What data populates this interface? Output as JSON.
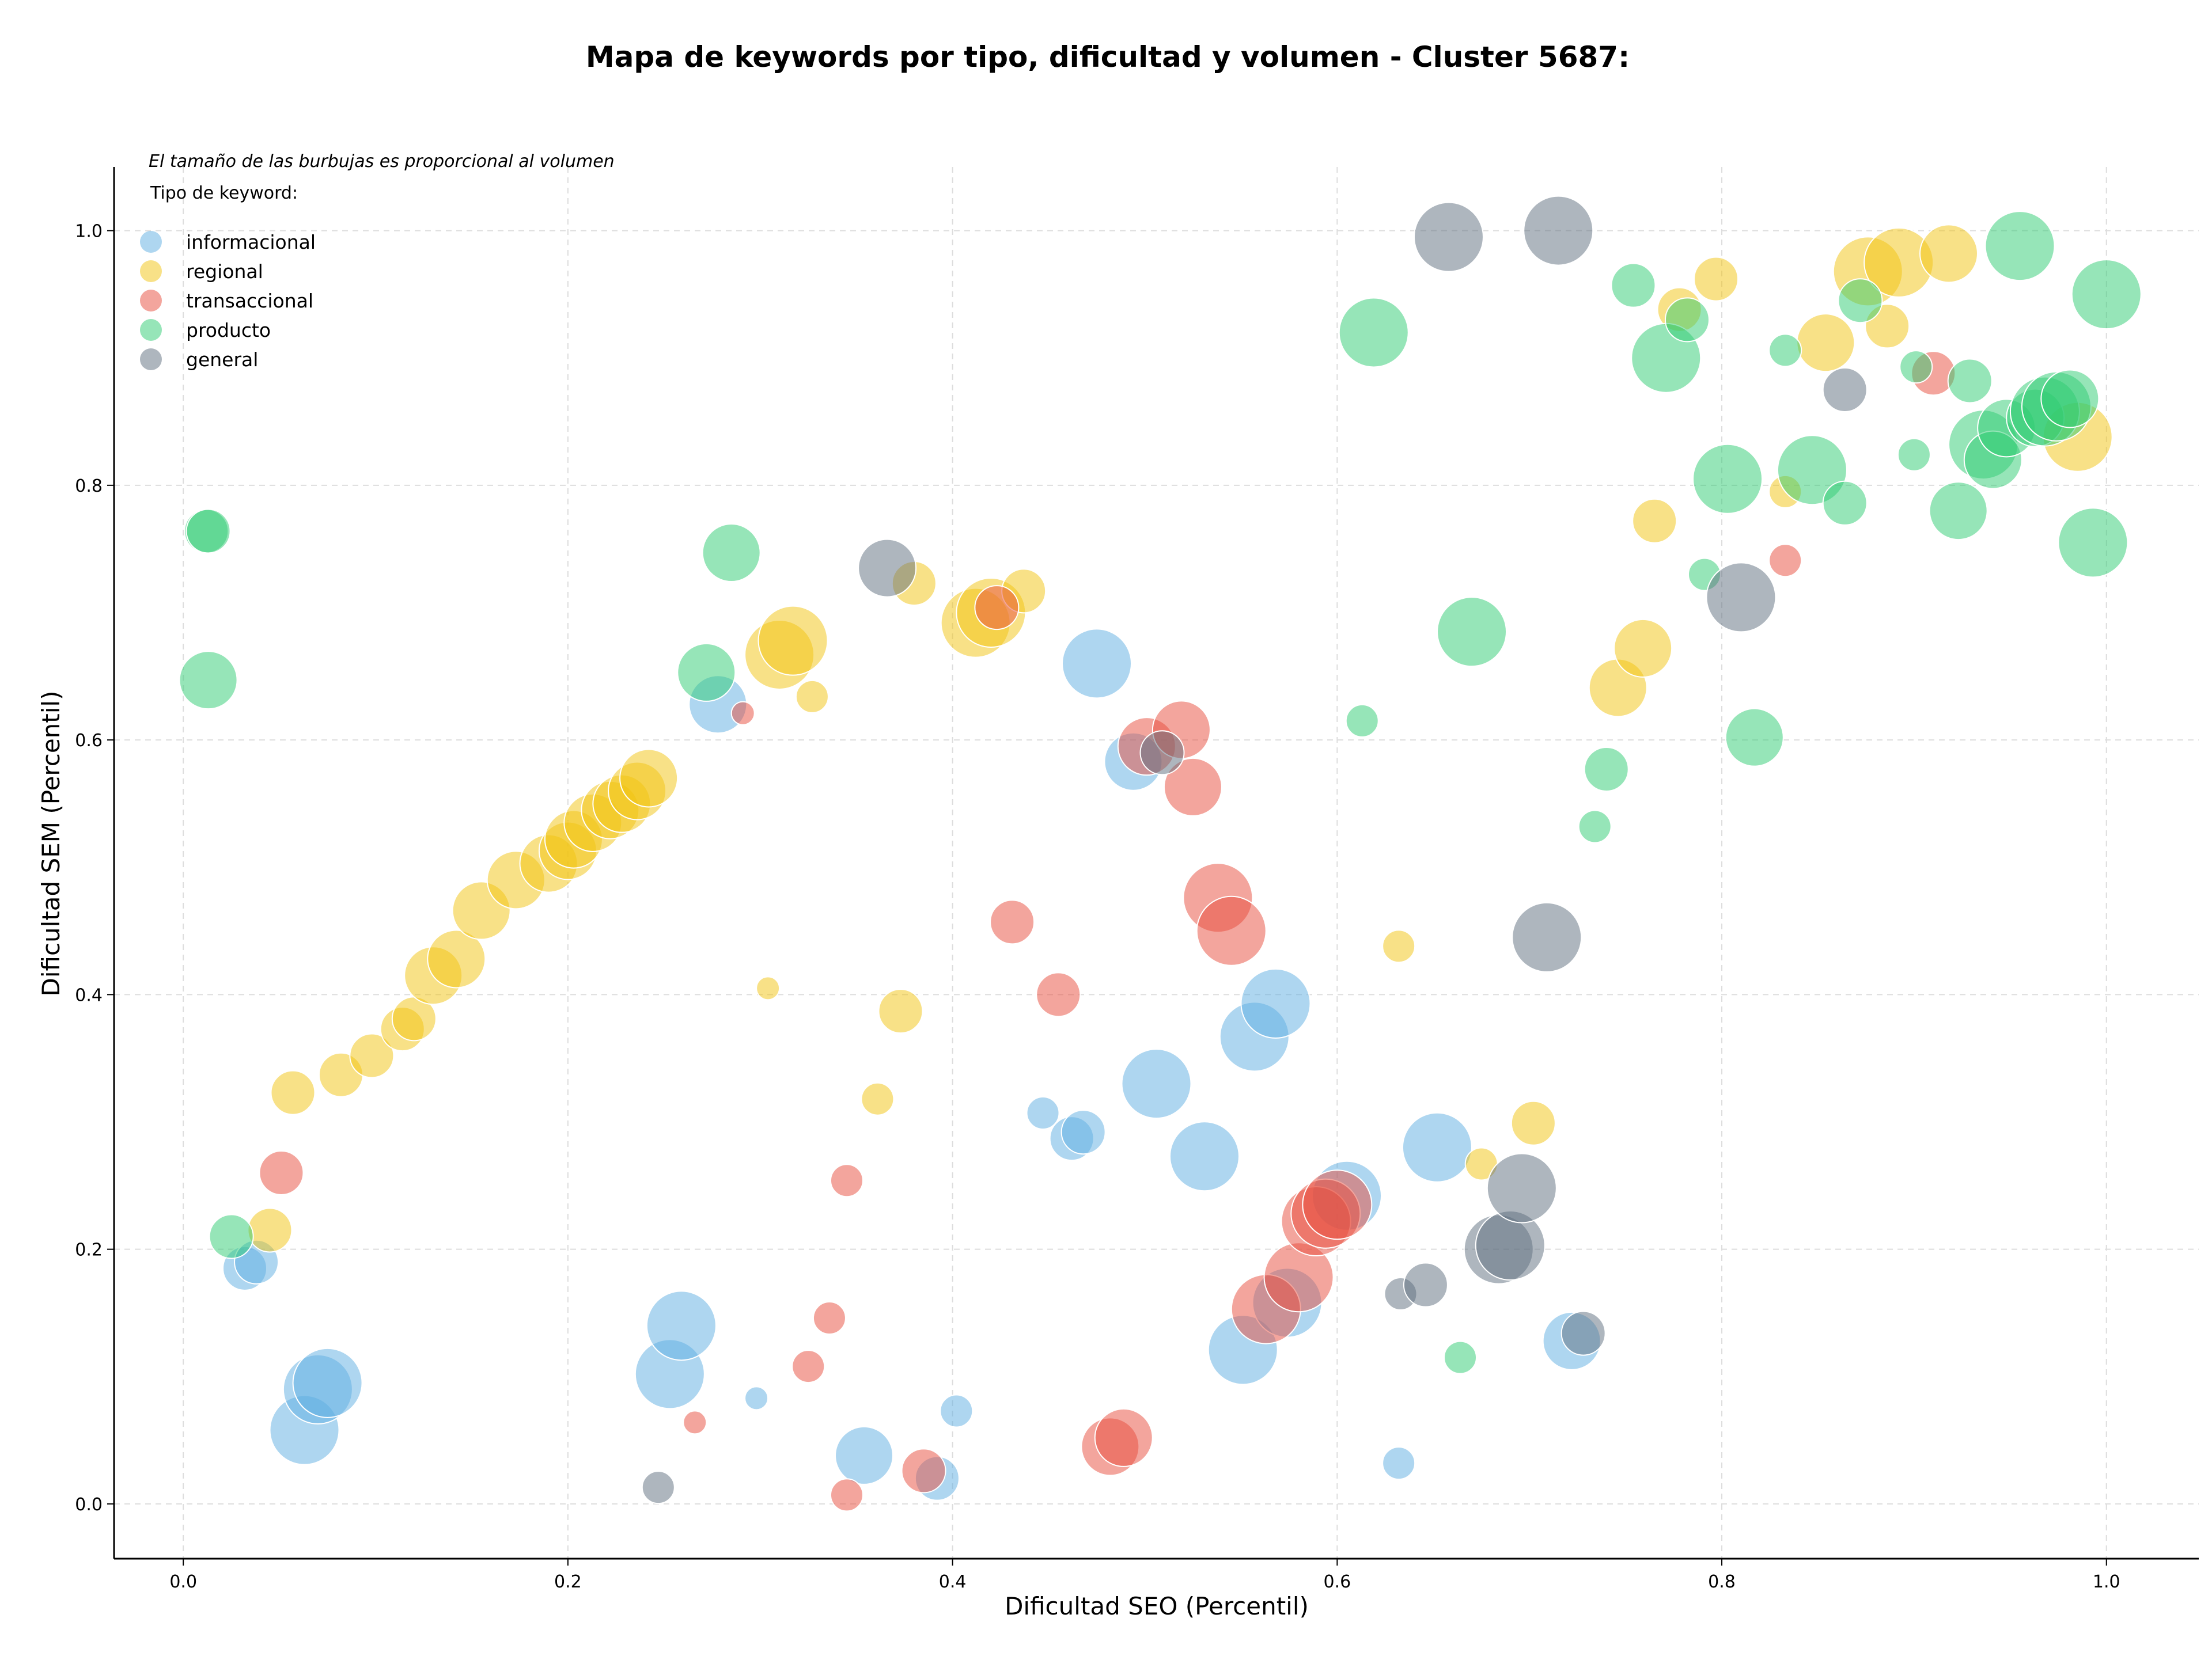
{
  "chart_data": {
    "type": "scatter",
    "title": "Mapa de keywords por tipo, dificultad y volumen - Cluster 5687:",
    "xlabel": "Dificultad SEO (Percentil)",
    "ylabel": "Dificultad SEM (Percentil)",
    "xlim": [
      -0.036,
      1.048
    ],
    "ylim": [
      -0.043,
      1.05
    ],
    "xticks": [
      "0.0",
      "0.2",
      "0.4",
      "0.6",
      "0.8",
      "1.0"
    ],
    "yticks": [
      "0.0",
      "0.2",
      "0.4",
      "0.6",
      "0.8",
      "1.0"
    ],
    "grid": true,
    "note": "El tamaño de las burbujas es proporcional al volumen",
    "legend": {
      "title": "Tipo de keyword:",
      "placement": "top-left"
    },
    "series": [
      {
        "name": "informacional",
        "color": "#5dade2",
        "points": [
          [
            0.032,
            0.185,
            3
          ],
          [
            0.038,
            0.19,
            3
          ],
          [
            0.063,
            0.058,
            5
          ],
          [
            0.07,
            0.09,
            5
          ],
          [
            0.075,
            0.095,
            5
          ],
          [
            0.253,
            0.102,
            5
          ],
          [
            0.259,
            0.14,
            5
          ],
          [
            0.278,
            0.628,
            4
          ],
          [
            0.298,
            0.083,
            1
          ],
          [
            0.354,
            0.038,
            4
          ],
          [
            0.392,
            0.02,
            3
          ],
          [
            0.402,
            0.073,
            2
          ],
          [
            0.447,
            0.307,
            2
          ],
          [
            0.462,
            0.287,
            3
          ],
          [
            0.468,
            0.292,
            3
          ],
          [
            0.475,
            0.66,
            5
          ],
          [
            0.494,
            0.583,
            4
          ],
          [
            0.506,
            0.33,
            5
          ],
          [
            0.531,
            0.273,
            5
          ],
          [
            0.551,
            0.121,
            5
          ],
          [
            0.557,
            0.367,
            5
          ],
          [
            0.568,
            0.393,
            5
          ],
          [
            0.574,
            0.158,
            5
          ],
          [
            0.605,
            0.242,
            5
          ],
          [
            0.652,
            0.28,
            5
          ],
          [
            0.632,
            0.032,
            2
          ],
          [
            0.722,
            0.128,
            4
          ]
        ]
      },
      {
        "name": "regional",
        "color": "#f1c40f",
        "points": [
          [
            0.045,
            0.215,
            3
          ],
          [
            0.057,
            0.323,
            3
          ],
          [
            0.082,
            0.337,
            3
          ],
          [
            0.098,
            0.352,
            3
          ],
          [
            0.114,
            0.373,
            3
          ],
          [
            0.12,
            0.381,
            3
          ],
          [
            0.13,
            0.415,
            4
          ],
          [
            0.142,
            0.428,
            4
          ],
          [
            0.155,
            0.466,
            4
          ],
          [
            0.173,
            0.49,
            4
          ],
          [
            0.19,
            0.503,
            4
          ],
          [
            0.2,
            0.513,
            4
          ],
          [
            0.203,
            0.522,
            4
          ],
          [
            0.213,
            0.535,
            4
          ],
          [
            0.222,
            0.545,
            4
          ],
          [
            0.228,
            0.55,
            4
          ],
          [
            0.236,
            0.56,
            4
          ],
          [
            0.242,
            0.57,
            4
          ],
          [
            0.304,
            0.405,
            1
          ],
          [
            0.31,
            0.667,
            5
          ],
          [
            0.317,
            0.678,
            5
          ],
          [
            0.327,
            0.634,
            2
          ],
          [
            0.373,
            0.387,
            3
          ],
          [
            0.38,
            0.723,
            3
          ],
          [
            0.361,
            0.318,
            2
          ],
          [
            0.412,
            0.692,
            5
          ],
          [
            0.42,
            0.7,
            5
          ],
          [
            0.437,
            0.717,
            3
          ],
          [
            0.632,
            0.438,
            2
          ],
          [
            0.675,
            0.267,
            2
          ],
          [
            0.702,
            0.299,
            3
          ],
          [
            0.746,
            0.641,
            4
          ],
          [
            0.759,
            0.672,
            4
          ],
          [
            0.765,
            0.772,
            3
          ],
          [
            0.778,
            0.938,
            3
          ],
          [
            0.797,
            0.962,
            3
          ],
          [
            0.833,
            0.795,
            2
          ],
          [
            0.854,
            0.912,
            4
          ],
          [
            0.876,
            0.968,
            5
          ],
          [
            0.886,
            0.925,
            3
          ],
          [
            0.892,
            0.975,
            5
          ],
          [
            0.918,
            0.982,
            4
          ],
          [
            0.985,
            0.838,
            5
          ]
        ]
      },
      {
        "name": "transaccional",
        "color": "#e74c3c",
        "points": [
          [
            0.051,
            0.26,
            3
          ],
          [
            0.291,
            0.621,
            1
          ],
          [
            0.266,
            0.064,
            1
          ],
          [
            0.325,
            0.108,
            2
          ],
          [
            0.336,
            0.146,
            2
          ],
          [
            0.345,
            0.254,
            2
          ],
          [
            0.345,
            0.007,
            2
          ],
          [
            0.385,
            0.026,
            3
          ],
          [
            0.423,
            0.704,
            3
          ],
          [
            0.431,
            0.457,
            3
          ],
          [
            0.455,
            0.4,
            3
          ],
          [
            0.482,
            0.045,
            4
          ],
          [
            0.489,
            0.052,
            4
          ],
          [
            0.501,
            0.595,
            4
          ],
          [
            0.519,
            0.608,
            4
          ],
          [
            0.525,
            0.563,
            4
          ],
          [
            0.538,
            0.476,
            5
          ],
          [
            0.545,
            0.45,
            5
          ],
          [
            0.563,
            0.153,
            5
          ],
          [
            0.58,
            0.178,
            5
          ],
          [
            0.589,
            0.222,
            5
          ],
          [
            0.594,
            0.228,
            5
          ],
          [
            0.6,
            0.235,
            5
          ],
          [
            0.91,
            0.888,
            3
          ],
          [
            0.833,
            0.741,
            2
          ]
        ]
      },
      {
        "name": "producto",
        "color": "#2ecc71",
        "points": [
          [
            0.012,
            0.764,
            3
          ],
          [
            0.013,
            0.764,
            3
          ],
          [
            0.013,
            0.647,
            4
          ],
          [
            0.025,
            0.21,
            3
          ],
          [
            0.272,
            0.653,
            4
          ],
          [
            0.285,
            0.747,
            4
          ],
          [
            0.613,
            0.615,
            2
          ],
          [
            0.619,
            0.92,
            5
          ],
          [
            0.664,
            0.115,
            2
          ],
          [
            0.67,
            0.685,
            5
          ],
          [
            0.734,
            0.532,
            2
          ],
          [
            0.74,
            0.577,
            3
          ],
          [
            0.754,
            0.957,
            3
          ],
          [
            0.771,
            0.9,
            5
          ],
          [
            0.782,
            0.93,
            3
          ],
          [
            0.791,
            0.73,
            2
          ],
          [
            0.803,
            0.805,
            5
          ],
          [
            0.817,
            0.602,
            4
          ],
          [
            0.833,
            0.906,
            2
          ],
          [
            0.847,
            0.812,
            5
          ],
          [
            0.864,
            0.786,
            3
          ],
          [
            0.872,
            0.945,
            3
          ],
          [
            0.9,
            0.824,
            2
          ],
          [
            0.901,
            0.893,
            2
          ],
          [
            0.923,
            0.78,
            4
          ],
          [
            0.929,
            0.882,
            3
          ],
          [
            0.936,
            0.832,
            5
          ],
          [
            0.941,
            0.82,
            4
          ],
          [
            0.948,
            0.845,
            4
          ],
          [
            0.955,
            0.988,
            5
          ],
          [
            0.963,
            0.853,
            4
          ],
          [
            0.968,
            0.858,
            5
          ],
          [
            0.974,
            0.862,
            5
          ],
          [
            0.981,
            0.868,
            4
          ],
          [
            0.993,
            0.755,
            5
          ],
          [
            1.0,
            0.95,
            5
          ]
        ]
      },
      {
        "name": "general",
        "color": "#5d6d7e",
        "points": [
          [
            0.247,
            0.013,
            2
          ],
          [
            0.366,
            0.735,
            4
          ],
          [
            0.509,
            0.59,
            3
          ],
          [
            0.633,
            0.165,
            2
          ],
          [
            0.646,
            0.172,
            3
          ],
          [
            0.658,
            0.995,
            5
          ],
          [
            0.684,
            0.2,
            5
          ],
          [
            0.69,
            0.203,
            5
          ],
          [
            0.696,
            0.248,
            5
          ],
          [
            0.709,
            0.445,
            5
          ],
          [
            0.715,
            1.0,
            5
          ],
          [
            0.728,
            0.134,
            3
          ],
          [
            0.81,
            0.712,
            5
          ],
          [
            0.864,
            0.875,
            3
          ]
        ]
      }
    ],
    "size_scale_note": "third value in each point is relative bubble size (1-5) proportional to volume"
  }
}
